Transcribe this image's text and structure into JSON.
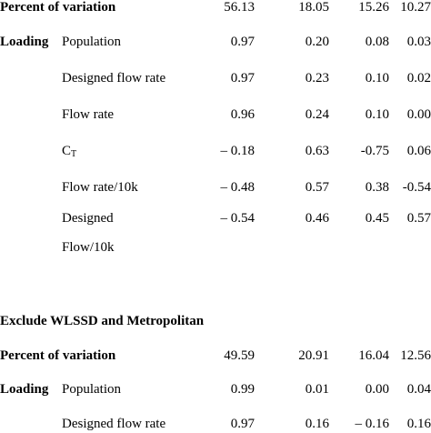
{
  "section1": {
    "percent_label": "Percent of variation",
    "percent_values": [
      "56.13",
      "18.05",
      "15.26",
      "10.27"
    ],
    "loading_label": "Loading",
    "rows": [
      {
        "label": "Population",
        "values": [
          "0.97",
          "0.20",
          "0.08",
          "0.03"
        ]
      },
      {
        "label": "Designed flow rate",
        "values": [
          "0.97",
          "0.23",
          "0.10",
          "0.02"
        ]
      },
      {
        "label": "Flow rate",
        "values": [
          "0.96",
          "0.24",
          "0.10",
          "0.00"
        ]
      },
      {
        "label_main": "C",
        "label_sub": "T",
        "values": [
          "– 0.18",
          "0.63",
          "-0.75",
          "0.06"
        ]
      },
      {
        "label": "Flow rate/10k",
        "values": [
          "– 0.48",
          "0.57",
          "0.38",
          "-0.54"
        ]
      },
      {
        "label": "Designed",
        "label_line2": "Flow/10k",
        "values": [
          "– 0.54",
          "0.46",
          "0.45",
          "0.57"
        ]
      }
    ]
  },
  "section2": {
    "title": "Exclude WLSSD and Metropolitan",
    "percent_label": "Percent of variation",
    "percent_values": [
      "49.59",
      "20.91",
      "16.04",
      "12.56"
    ],
    "loading_label": "Loading",
    "rows": [
      {
        "label": "Population",
        "values": [
          "0.99",
          "0.01",
          "0.00",
          "0.04"
        ]
      },
      {
        "label": "Designed flow rate",
        "values": [
          "0.97",
          "0.16",
          "– 0.16",
          "0.16"
        ]
      }
    ]
  }
}
